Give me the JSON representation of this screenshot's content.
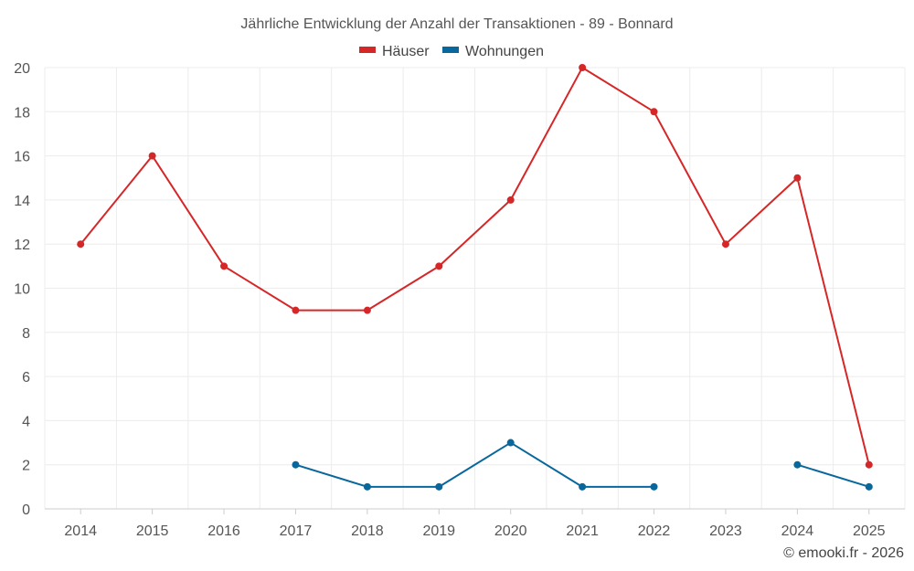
{
  "chart_data": {
    "type": "line",
    "title": "Jährliche Entwicklung der Anzahl der Transaktionen - 89 - Bonnard",
    "categories": [
      "2014",
      "2015",
      "2016",
      "2017",
      "2018",
      "2019",
      "2020",
      "2021",
      "2022",
      "2023",
      "2024",
      "2025"
    ],
    "ylim": [
      0,
      20
    ],
    "yticks": [
      0,
      2,
      4,
      6,
      8,
      10,
      12,
      14,
      16,
      18,
      20
    ],
    "grid": true,
    "legend_position": "top-center",
    "series": [
      {
        "name": "Häuser",
        "color": "#d62728",
        "values": [
          12,
          16,
          11,
          9,
          9,
          11,
          14,
          20,
          18,
          12,
          15,
          2
        ]
      },
      {
        "name": "Wohnungen",
        "color": "#08679c",
        "values": [
          null,
          null,
          null,
          2,
          1,
          1,
          3,
          1,
          1,
          null,
          2,
          1
        ]
      }
    ]
  },
  "credit": "© emooki.fr - 2026"
}
